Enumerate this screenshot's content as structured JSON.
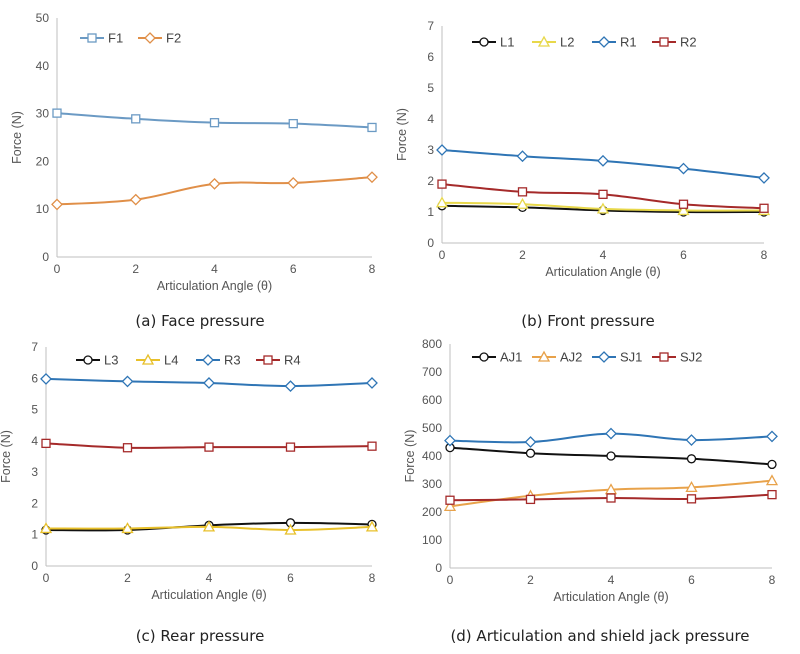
{
  "captions": {
    "a": "(a) Face pressure",
    "b": "(b) Front pressure",
    "c": "(c) Rear pressure",
    "d": "(d) Articulation and shield jack pressure"
  },
  "chart_data": [
    {
      "id": "a",
      "type": "line",
      "x": [
        0,
        2,
        4,
        6,
        8
      ],
      "xlabel": "Articulation Angle (θ)",
      "ylabel": "Force (N)",
      "xlim": [
        0,
        8
      ],
      "xticks": [
        0,
        2,
        4,
        6,
        8
      ],
      "ylim": [
        0,
        50
      ],
      "yticks": [
        0,
        10,
        20,
        30,
        40,
        50
      ],
      "grid": false,
      "legend": "top-left",
      "series": [
        {
          "name": "F1",
          "color": "#6b9ac4",
          "marker": "square",
          "values": [
            30.1,
            28.9,
            28.1,
            27.9,
            27.1
          ]
        },
        {
          "name": "F2",
          "color": "#e08f48",
          "marker": "diamond",
          "values": [
            11.0,
            12.0,
            15.3,
            15.5,
            16.7
          ]
        }
      ]
    },
    {
      "id": "b",
      "type": "line",
      "x": [
        0,
        2,
        4,
        6,
        8
      ],
      "xlabel": "Articulation Angle (θ)",
      "ylabel": "Force (N)",
      "xlim": [
        0,
        8
      ],
      "xticks": [
        0,
        2,
        4,
        6,
        8
      ],
      "ylim": [
        0,
        7
      ],
      "yticks": [
        0,
        1,
        2,
        3,
        4,
        5,
        6,
        7
      ],
      "grid": false,
      "legend": "top",
      "series": [
        {
          "name": "L1",
          "color": "#111111",
          "marker": "circle",
          "values": [
            1.2,
            1.15,
            1.05,
            1.0,
            1.0
          ]
        },
        {
          "name": "L2",
          "color": "#e8d84a",
          "marker": "triangle",
          "values": [
            1.3,
            1.25,
            1.1,
            1.05,
            1.05
          ]
        },
        {
          "name": "R1",
          "color": "#2f75b5",
          "marker": "diamond",
          "values": [
            3.0,
            2.8,
            2.65,
            2.4,
            2.1
          ]
        },
        {
          "name": "R2",
          "color": "#a52a2a",
          "marker": "square",
          "values": [
            1.9,
            1.65,
            1.57,
            1.25,
            1.12
          ]
        }
      ]
    },
    {
      "id": "c",
      "type": "line",
      "x": [
        0,
        2,
        4,
        6,
        8
      ],
      "xlabel": "Articulation Angle (θ)",
      "ylabel": "Force (N)",
      "xlim": [
        0,
        8
      ],
      "xticks": [
        0,
        2,
        4,
        6,
        8
      ],
      "ylim": [
        0,
        7
      ],
      "yticks": [
        0,
        1,
        2,
        3,
        4,
        5,
        6,
        7
      ],
      "grid": false,
      "legend": "top",
      "series": [
        {
          "name": "L3",
          "color": "#111111",
          "marker": "circle",
          "values": [
            1.15,
            1.15,
            1.3,
            1.38,
            1.33
          ]
        },
        {
          "name": "L4",
          "color": "#e8c02a",
          "marker": "triangle",
          "values": [
            1.2,
            1.2,
            1.25,
            1.15,
            1.25
          ]
        },
        {
          "name": "R3",
          "color": "#2f75b5",
          "marker": "diamond",
          "values": [
            5.98,
            5.9,
            5.85,
            5.75,
            5.85
          ]
        },
        {
          "name": "R4",
          "color": "#a52a2a",
          "marker": "square",
          "values": [
            3.92,
            3.78,
            3.8,
            3.8,
            3.83
          ]
        }
      ]
    },
    {
      "id": "d",
      "type": "line",
      "x": [
        0,
        2,
        4,
        6,
        8
      ],
      "xlabel": "Articulation Angle (θ)",
      "ylabel": "Force (N)",
      "xlim": [
        0,
        8
      ],
      "xticks": [
        0,
        2,
        4,
        6,
        8
      ],
      "ylim": [
        0,
        800
      ],
      "yticks": [
        0,
        100,
        200,
        300,
        400,
        500,
        600,
        700,
        800
      ],
      "grid": false,
      "legend": "top",
      "series": [
        {
          "name": "AJ1",
          "color": "#111111",
          "marker": "circle",
          "values": [
            430,
            410,
            400,
            390,
            370
          ]
        },
        {
          "name": "AJ2",
          "color": "#e8a24a",
          "marker": "triangle",
          "values": [
            220,
            258,
            280,
            288,
            312
          ]
        },
        {
          "name": "SJ1",
          "color": "#2f75b5",
          "marker": "diamond",
          "values": [
            455,
            450,
            480,
            457,
            470
          ]
        },
        {
          "name": "SJ2",
          "color": "#a52a2a",
          "marker": "square",
          "values": [
            242,
            245,
            250,
            247,
            262
          ]
        }
      ]
    }
  ]
}
